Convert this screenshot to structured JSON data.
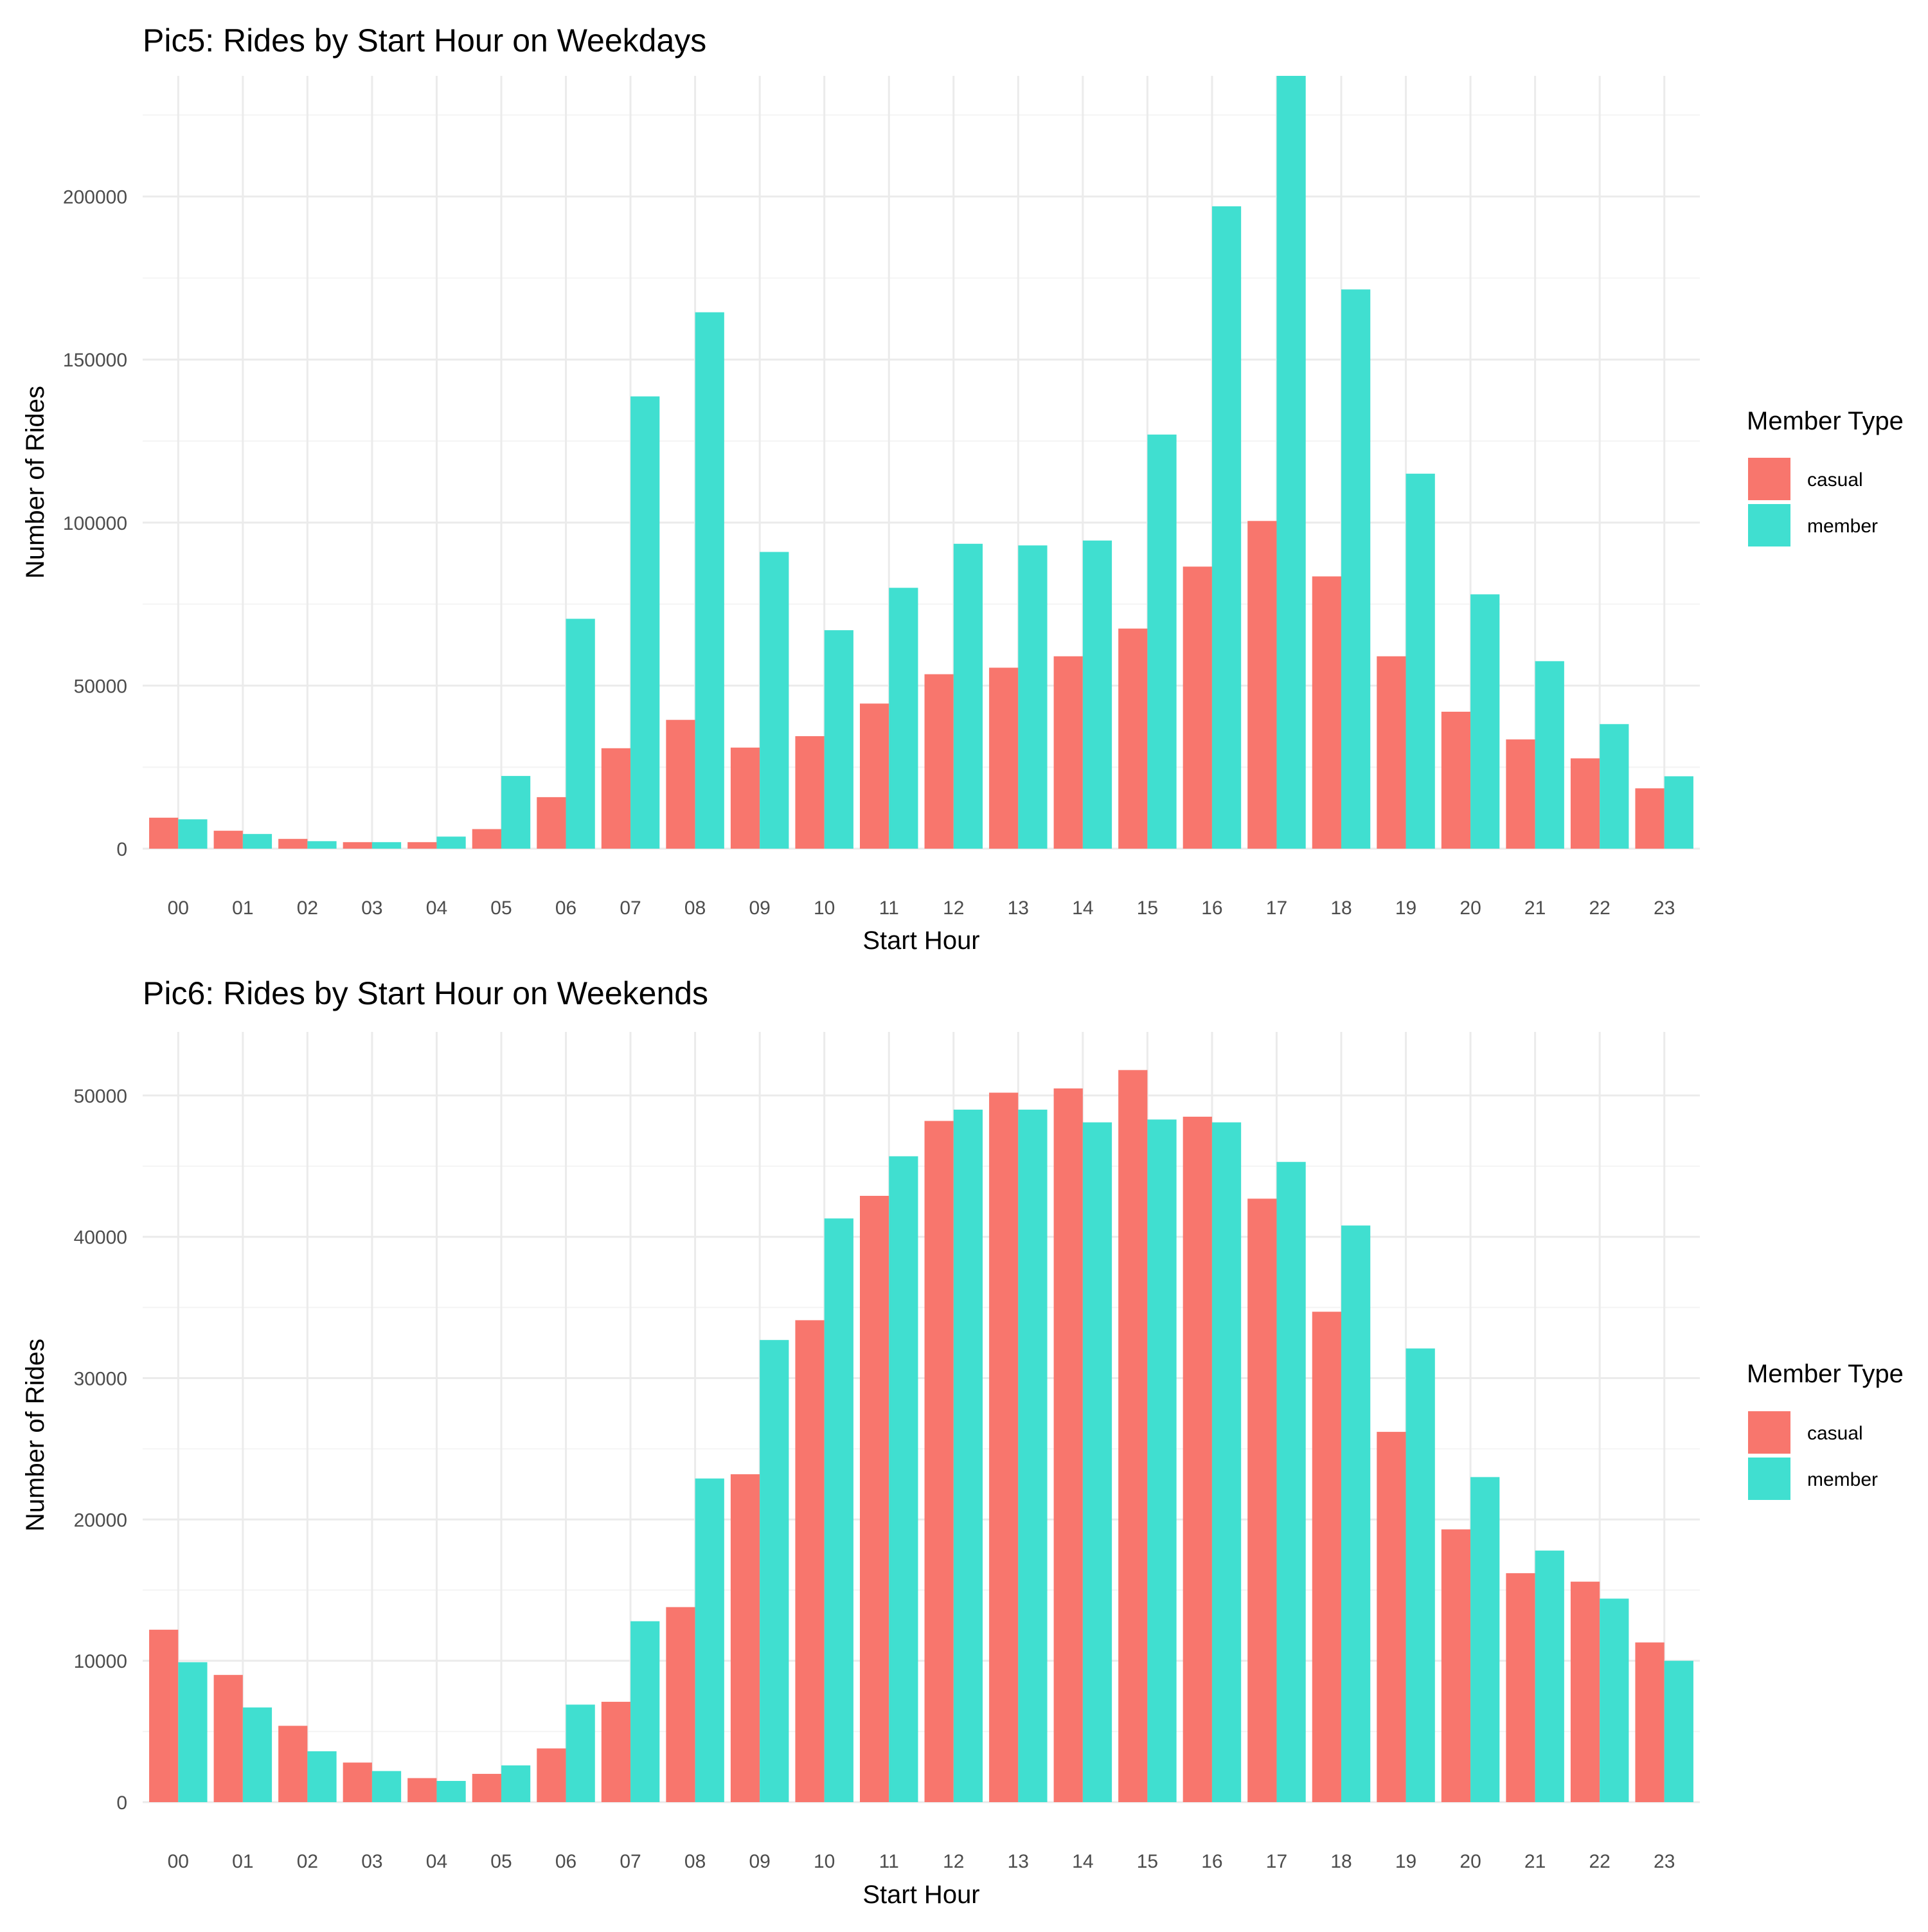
{
  "colors": {
    "casual": "#F8766D",
    "member": "#40DFD0",
    "grid_major": "#EBEBEB",
    "grid_minor": "#F4F4F4"
  },
  "chart_data": [
    {
      "type": "bar",
      "title": "Pic5: Rides by Start Hour on Weekdays",
      "xlabel": "Start Hour",
      "ylabel": "Number of Rides",
      "ylim": [
        0,
        237000
      ],
      "yticks": [
        0,
        50000,
        100000,
        150000,
        200000
      ],
      "yticks_labels": [
        "0",
        "50000",
        "100000",
        "150000",
        "200000"
      ],
      "categories": [
        "00",
        "01",
        "02",
        "03",
        "04",
        "05",
        "06",
        "07",
        "08",
        "09",
        "10",
        "11",
        "12",
        "13",
        "14",
        "15",
        "16",
        "17",
        "18",
        "19",
        "20",
        "21",
        "22",
        "23"
      ],
      "legend": {
        "title": "Member Type",
        "position": "right"
      },
      "grid": true,
      "series": [
        {
          "name": "casual",
          "values": [
            9500,
            5500,
            3000,
            2000,
            2000,
            6000,
            15800,
            30800,
            39500,
            31000,
            34500,
            44500,
            53500,
            55500,
            59000,
            67500,
            86500,
            100500,
            83500,
            59000,
            42000,
            33500,
            27700,
            18500
          ]
        },
        {
          "name": "member",
          "values": [
            9000,
            4500,
            2300,
            2000,
            3700,
            22300,
            70500,
            138700,
            164500,
            91000,
            67000,
            80000,
            93500,
            93000,
            94500,
            127000,
            197000,
            237000,
            171500,
            115000,
            78000,
            57500,
            38200,
            22200
          ]
        }
      ]
    },
    {
      "type": "bar",
      "title": "Pic6: Rides by Start Hour on Weekends",
      "xlabel": "Start Hour",
      "ylabel": "Number of Rides",
      "ylim": [
        0,
        54500
      ],
      "yticks": [
        0,
        10000,
        20000,
        30000,
        40000,
        50000
      ],
      "yticks_labels": [
        "0",
        "10000",
        "20000",
        "30000",
        "40000",
        "50000"
      ],
      "categories": [
        "00",
        "01",
        "02",
        "03",
        "04",
        "05",
        "06",
        "07",
        "08",
        "09",
        "10",
        "11",
        "12",
        "13",
        "14",
        "15",
        "16",
        "17",
        "18",
        "19",
        "20",
        "21",
        "22",
        "23"
      ],
      "legend": {
        "title": "Member Type",
        "position": "right"
      },
      "grid": true,
      "series": [
        {
          "name": "casual",
          "values": [
            12200,
            9000,
            5400,
            2800,
            1700,
            2000,
            3800,
            7100,
            13800,
            23200,
            34100,
            42900,
            48200,
            50200,
            50500,
            51800,
            48500,
            42700,
            34700,
            26200,
            19300,
            16200,
            15600,
            11300
          ]
        },
        {
          "name": "member",
          "values": [
            9900,
            6700,
            3600,
            2200,
            1500,
            2600,
            6900,
            12800,
            22900,
            32700,
            41300,
            45700,
            49000,
            49000,
            48100,
            48300,
            48100,
            45300,
            40800,
            32100,
            23000,
            17800,
            14400,
            10000
          ]
        }
      ]
    }
  ]
}
